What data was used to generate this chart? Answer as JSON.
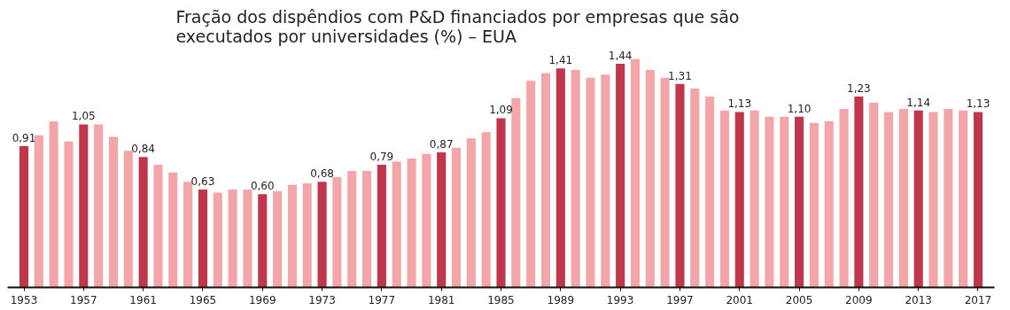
{
  "chart_data": {
    "type": "bar",
    "title": "Fração dos dispêndios com P&D financiados por empresas que são\nexecutados por universidades (%) – EUA",
    "x": [
      1953,
      1954,
      1955,
      1956,
      1957,
      1958,
      1959,
      1960,
      1961,
      1962,
      1963,
      1964,
      1965,
      1966,
      1967,
      1968,
      1969,
      1970,
      1971,
      1972,
      1973,
      1974,
      1975,
      1976,
      1977,
      1978,
      1979,
      1980,
      1981,
      1982,
      1983,
      1984,
      1985,
      1986,
      1987,
      1988,
      1989,
      1990,
      1991,
      1992,
      1993,
      1994,
      1995,
      1996,
      1997,
      1998,
      1999,
      2000,
      2001,
      2002,
      2003,
      2004,
      2005,
      2006,
      2007,
      2008,
      2009,
      2010,
      2011,
      2012,
      2013,
      2014,
      2015,
      2016,
      2017
    ],
    "values": [
      0.91,
      0.98,
      1.07,
      0.94,
      1.05,
      1.05,
      0.97,
      0.88,
      0.84,
      0.79,
      0.74,
      0.68,
      0.63,
      0.61,
      0.63,
      0.63,
      0.6,
      0.62,
      0.66,
      0.67,
      0.68,
      0.71,
      0.75,
      0.75,
      0.79,
      0.81,
      0.83,
      0.86,
      0.87,
      0.9,
      0.96,
      1.0,
      1.09,
      1.22,
      1.33,
      1.38,
      1.41,
      1.4,
      1.35,
      1.37,
      1.44,
      1.47,
      1.4,
      1.35,
      1.31,
      1.28,
      1.23,
      1.14,
      1.13,
      1.14,
      1.1,
      1.1,
      1.1,
      1.06,
      1.07,
      1.15,
      1.23,
      1.19,
      1.13,
      1.15,
      1.14,
      1.13,
      1.15,
      1.14,
      1.13
    ],
    "colors": [
      "#c0364a",
      "#f4a5a8",
      "#f4a5a8",
      "#f4a5a8",
      "#c0364a",
      "#f4a5a8",
      "#f4a5a8",
      "#f4a5a8",
      "#c0364a",
      "#f4a5a8",
      "#f4a5a8",
      "#f4a5a8",
      "#c0364a",
      "#f4a5a8",
      "#f4a5a8",
      "#f4a5a8",
      "#c0364a",
      "#f4a5a8",
      "#f4a5a8",
      "#f4a5a8",
      "#c0364a",
      "#f4a5a8",
      "#f4a5a8",
      "#f4a5a8",
      "#c0364a",
      "#f4a5a8",
      "#f4a5a8",
      "#f4a5a8",
      "#c0364a",
      "#f4a5a8",
      "#f4a5a8",
      "#f4a5a8",
      "#c0364a",
      "#f4a5a8",
      "#f4a5a8",
      "#f4a5a8",
      "#c0364a",
      "#f4a5a8",
      "#f4a5a8",
      "#f4a5a8",
      "#c0364a",
      "#f4a5a8",
      "#f4a5a8",
      "#f4a5a8",
      "#c0364a",
      "#f4a5a8",
      "#f4a5a8",
      "#f4a5a8",
      "#c0364a",
      "#f4a5a8",
      "#f4a5a8",
      "#f4a5a8",
      "#c0364a",
      "#f4a5a8",
      "#f4a5a8",
      "#f4a5a8",
      "#c0364a",
      "#f4a5a8",
      "#f4a5a8",
      "#f4a5a8",
      "#c0364a",
      "#f4a5a8",
      "#f4a5a8",
      "#f4a5a8",
      "#c0364a"
    ],
    "value_labels": [
      "0,91",
      null,
      null,
      null,
      "1,05",
      null,
      null,
      null,
      "0,84",
      null,
      null,
      null,
      "0,63",
      null,
      null,
      null,
      "0,60",
      null,
      null,
      null,
      "0,68",
      null,
      null,
      null,
      "0,79",
      null,
      null,
      null,
      "0,87",
      null,
      null,
      null,
      "1,09",
      null,
      null,
      null,
      "1,41",
      null,
      null,
      null,
      "1,44",
      null,
      null,
      null,
      "1,31",
      null,
      null,
      null,
      "1,13",
      null,
      null,
      null,
      "1,10",
      null,
      null,
      null,
      "1,23",
      null,
      null,
      null,
      "1,14",
      null,
      null,
      null,
      "1,13"
    ],
    "xlim": [
      1951.9,
      2018.1
    ],
    "xticks": [
      1953,
      1957,
      1961,
      1965,
      1969,
      1973,
      1977,
      1981,
      1985,
      1989,
      1993,
      1997,
      2001,
      2005,
      2009,
      2013,
      2017
    ],
    "tick_labels": "x"
  }
}
